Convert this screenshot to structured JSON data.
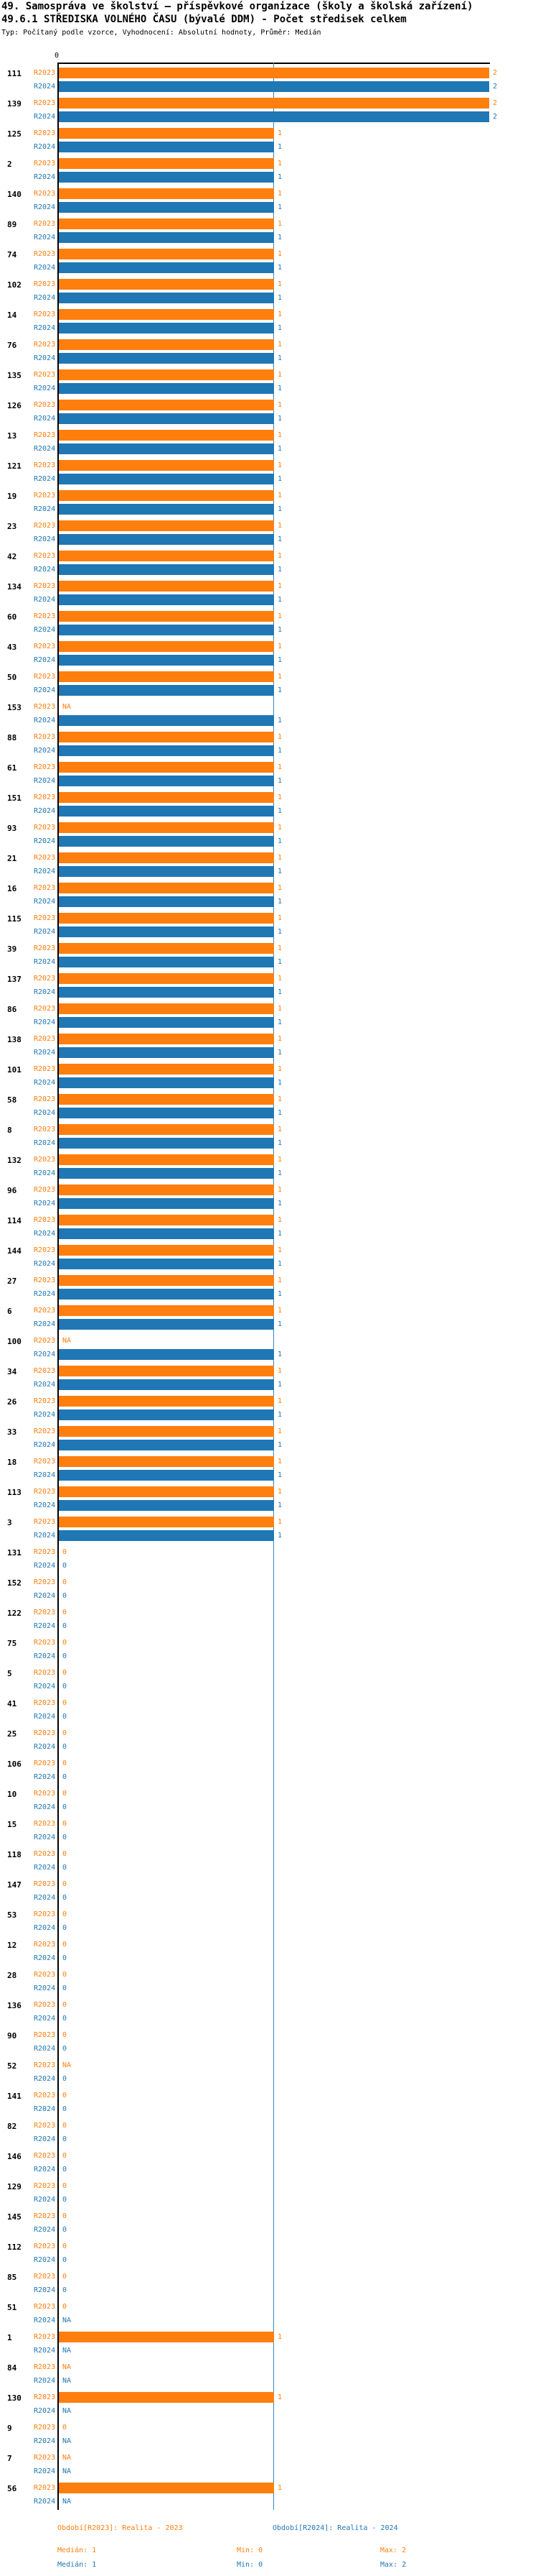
{
  "title_line1": "49. Samospráva ve školství – příspěvkové organizace (školy a školská zařízení)",
  "title_line2": "49.6.1 STŘEDISKA VOLNÉHO ČASU (bývalé DDM) - Počet středisek celkem",
  "subtitle": "Typ: Počítaný podle vzorce, Vyhodnocení: Absolutní hodnoty, Průměr: Medián",
  "axis": {
    "origin_tick": "0",
    "xlim": [
      0,
      2
    ]
  },
  "colors": {
    "r2023": "#ff7f0e",
    "r2024": "#1f77b4",
    "median_line": "#3a87c2",
    "axis": "#000000"
  },
  "legend": {
    "r2023": "Období[R2023]: Realita - 2023",
    "r2024": "Období[R2024]: Realita - 2024",
    "r2023_median": "Medián: 1",
    "r2024_median": "Medián: 1",
    "r2023_min": "Min: 0",
    "r2023_max": "Max: 2",
    "r2024_min": "Min: 0",
    "r2024_max": "Max: 2"
  },
  "chart_data": {
    "type": "bar",
    "orientation": "horizontal",
    "title": "49.6.1 STŘEDISKA VOLNÉHO ČASU (bývalé DDM) - Počet středisek celkem",
    "xlabel": "",
    "ylabel": "",
    "xlim": [
      0,
      2
    ],
    "grid": false,
    "legend_position": "bottom",
    "median_reference_line": 1,
    "stats": {
      "R2023": {
        "median": 1,
        "min": 0,
        "max": 2
      },
      "R2024": {
        "median": 1,
        "min": 0,
        "max": 2
      }
    },
    "categories": [
      "111",
      "139",
      "125",
      "2",
      "140",
      "89",
      "74",
      "102",
      "14",
      "76",
      "135",
      "126",
      "13",
      "121",
      "19",
      "23",
      "42",
      "134",
      "60",
      "43",
      "50",
      "153",
      "88",
      "61",
      "151",
      "93",
      "21",
      "16",
      "115",
      "39",
      "137",
      "86",
      "138",
      "101",
      "58",
      "8",
      "132",
      "96",
      "114",
      "144",
      "27",
      "6",
      "100",
      "34",
      "26",
      "33",
      "18",
      "113",
      "3",
      "131",
      "152",
      "122",
      "75",
      "5",
      "41",
      "25",
      "106",
      "10",
      "15",
      "118",
      "147",
      "53",
      "12",
      "28",
      "136",
      "90",
      "52",
      "141",
      "82",
      "146",
      "129",
      "145",
      "112",
      "85",
      "51",
      "1",
      "84",
      "130",
      "9",
      "7",
      "56"
    ],
    "series": [
      {
        "name": "R2023",
        "color": "#ff7f0e",
        "values": [
          "2",
          "2",
          "1",
          "1",
          "1",
          "1",
          "1",
          "1",
          "1",
          "1",
          "1",
          "1",
          "1",
          "1",
          "1",
          "1",
          "1",
          "1",
          "1",
          "1",
          "1",
          "NA",
          "1",
          "1",
          "1",
          "1",
          "1",
          "1",
          "1",
          "1",
          "1",
          "1",
          "1",
          "1",
          "1",
          "1",
          "1",
          "1",
          "1",
          "1",
          "1",
          "1",
          "NA",
          "1",
          "1",
          "1",
          "1",
          "1",
          "1",
          "0",
          "0",
          "0",
          "0",
          "0",
          "0",
          "0",
          "0",
          "0",
          "0",
          "0",
          "0",
          "0",
          "0",
          "0",
          "0",
          "0",
          "NA",
          "0",
          "0",
          "0",
          "0",
          "0",
          "0",
          "0",
          "0",
          "1",
          "NA",
          "1",
          "0",
          "NA",
          "1"
        ]
      },
      {
        "name": "R2024",
        "color": "#1f77b4",
        "values": [
          "2",
          "2",
          "1",
          "1",
          "1",
          "1",
          "1",
          "1",
          "1",
          "1",
          "1",
          "1",
          "1",
          "1",
          "1",
          "1",
          "1",
          "1",
          "1",
          "1",
          "1",
          "1",
          "1",
          "1",
          "1",
          "1",
          "1",
          "1",
          "1",
          "1",
          "1",
          "1",
          "1",
          "1",
          "1",
          "1",
          "1",
          "1",
          "1",
          "1",
          "1",
          "1",
          "1",
          "1",
          "1",
          "1",
          "1",
          "1",
          "1",
          "0",
          "0",
          "0",
          "0",
          "0",
          "0",
          "0",
          "0",
          "0",
          "0",
          "0",
          "0",
          "0",
          "0",
          "0",
          "0",
          "0",
          "0",
          "0",
          "0",
          "0",
          "0",
          "0",
          "0",
          "0",
          "NA",
          "NA",
          "NA",
          "NA",
          "NA",
          "NA",
          "NA"
        ]
      }
    ]
  }
}
